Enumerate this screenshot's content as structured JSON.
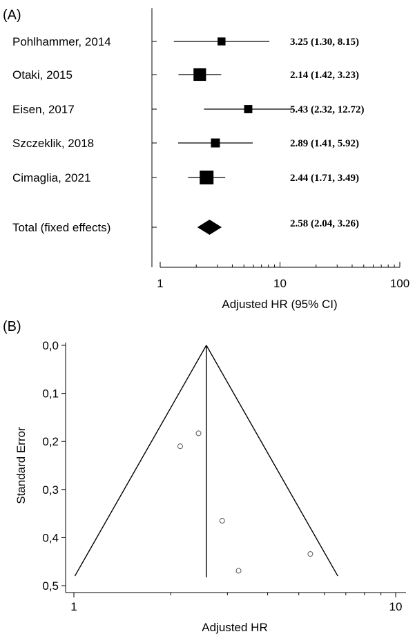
{
  "chart_data": [
    {
      "type": "forest",
      "panel_label": "(A)",
      "xlabel": "Adjusted HR (95% CI)",
      "x_scale": "log",
      "xlim": [
        1,
        100
      ],
      "xticks": [
        1,
        10,
        100
      ],
      "xtick_labels": [
        "1",
        "10",
        "100"
      ],
      "studies": [
        {
          "label": "Pohlhammer, 2014",
          "hr": 3.25,
          "lo": 1.3,
          "hi": 8.15,
          "text": "3.25 (1.30, 8.15)"
        },
        {
          "label": "Otaki, 2015",
          "hr": 2.14,
          "lo": 1.42,
          "hi": 3.23,
          "text": "2.14 (1.42, 3.23)"
        },
        {
          "label": "Eisen, 2017",
          "hr": 5.43,
          "lo": 2.32,
          "hi": 12.72,
          "text": "5.43 (2.32, 12.72)"
        },
        {
          "label": "Szczeklik, 2018",
          "hr": 2.89,
          "lo": 1.41,
          "hi": 5.92,
          "text": "2.89 (1.41, 5.92)"
        },
        {
          "label": "Cimaglia, 2021",
          "hr": 2.44,
          "lo": 1.71,
          "hi": 3.49,
          "text": "2.44 (1.71, 3.49)"
        }
      ],
      "total": {
        "label": "Total (fixed effects)",
        "hr": 2.58,
        "lo": 2.04,
        "hi": 3.26,
        "text": "2.58 (2.04, 3.26)"
      }
    },
    {
      "type": "funnel",
      "panel_label": "(B)",
      "xlabel": "Adjusted HR",
      "ylabel": "Standard Error",
      "x_scale": "log",
      "xlim": [
        1,
        10
      ],
      "xticks": [
        1,
        10
      ],
      "xtick_labels": [
        "1",
        "10"
      ],
      "ylim": [
        0,
        0.5
      ],
      "y_inverted": true,
      "yticks": [
        0,
        0.1,
        0.2,
        0.3,
        0.4,
        0.5
      ],
      "ytick_labels": [
        "0,0",
        "0,1",
        "0,2",
        "0,3",
        "0,4",
        "0,5"
      ],
      "pooled_hr": 2.58,
      "points": [
        {
          "hr": 2.14,
          "se": 0.21
        },
        {
          "hr": 2.44,
          "se": 0.183
        },
        {
          "hr": 2.89,
          "se": 0.365
        },
        {
          "hr": 3.25,
          "se": 0.469
        },
        {
          "hr": 5.43,
          "se": 0.434
        }
      ]
    }
  ]
}
